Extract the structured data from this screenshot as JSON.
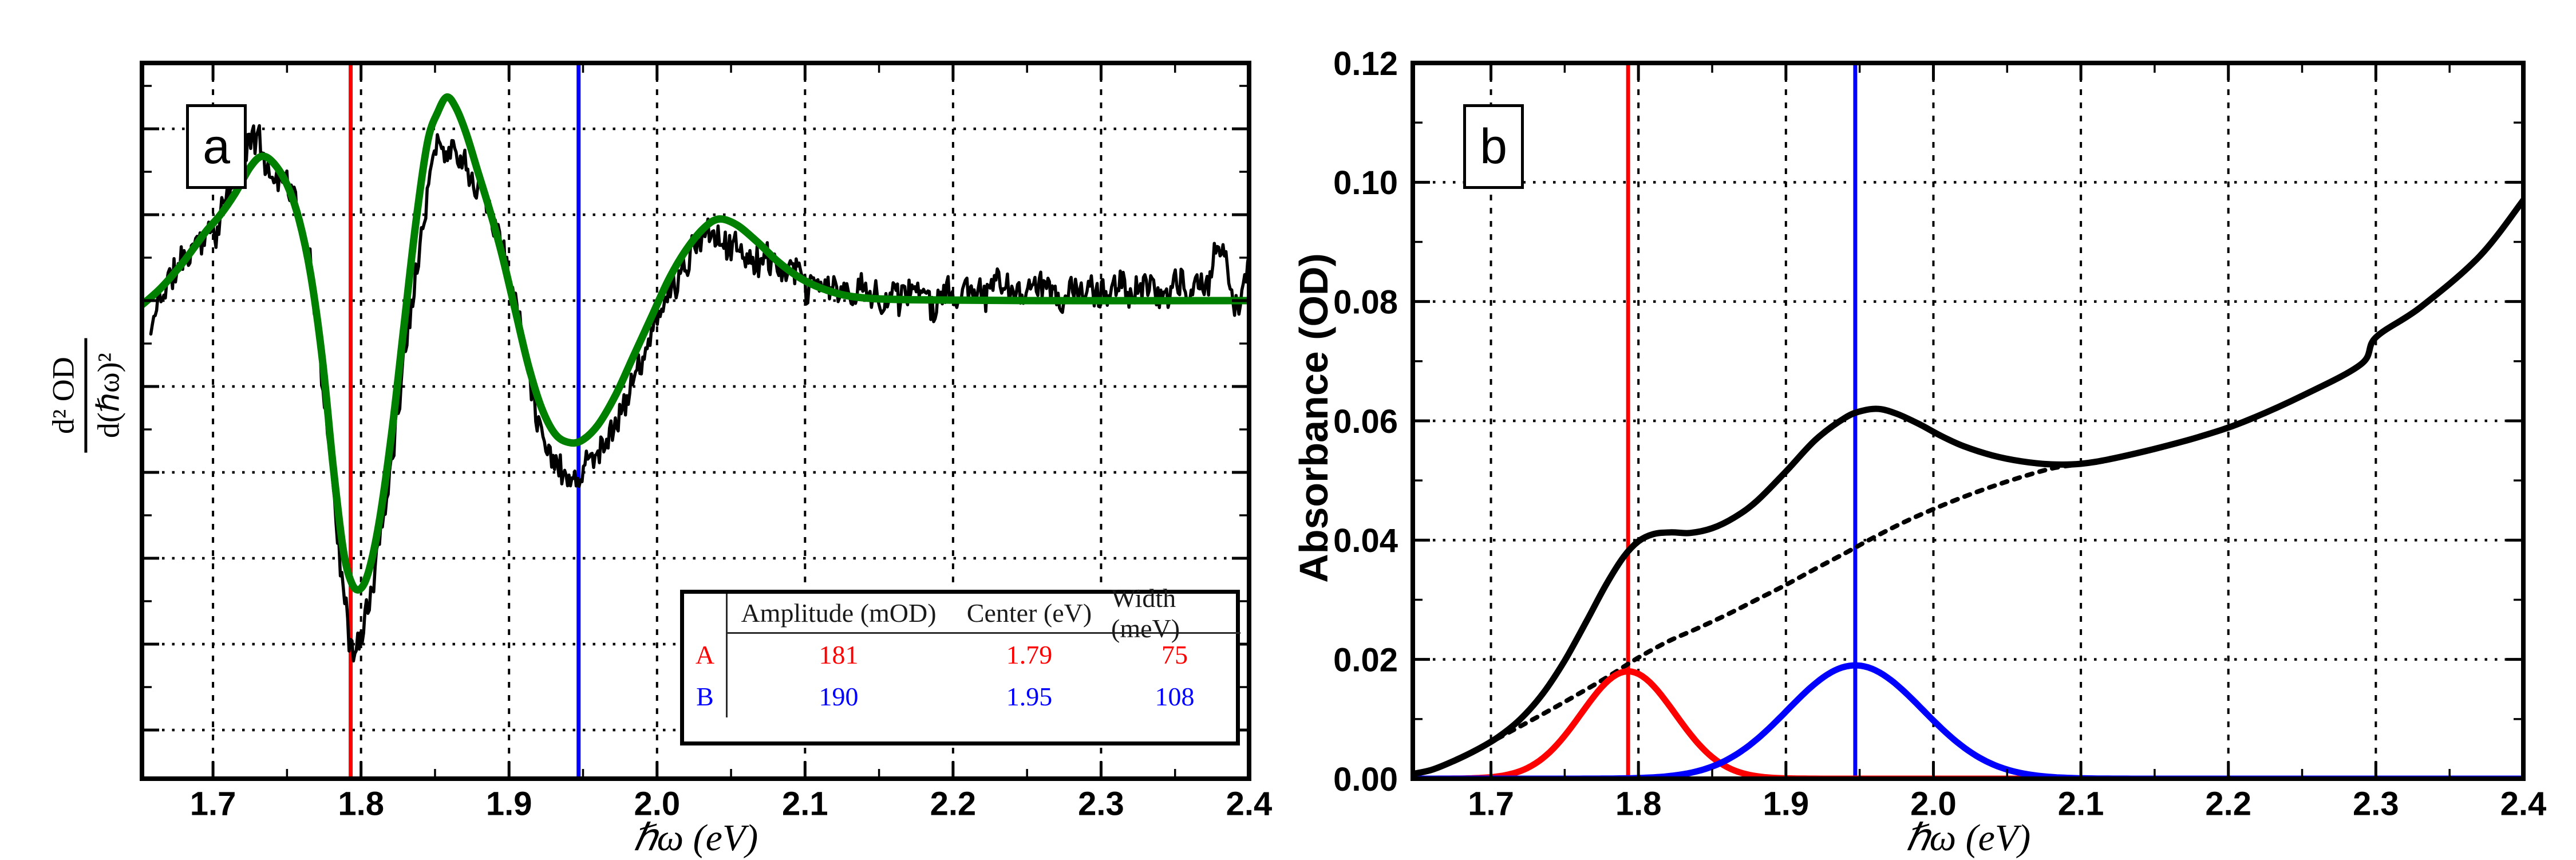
{
  "fit_table": {
    "headers": [
      "",
      "Amplitude (mOD)",
      "Center (eV)",
      "Width (meV)"
    ],
    "rows": [
      {
        "label": "A",
        "amplitude": "181",
        "center": "1.79",
        "width": "75",
        "color": "#ff0000"
      },
      {
        "label": "B",
        "amplitude": "190",
        "center": "1.95",
        "width": "108",
        "color": "#0000ff"
      }
    ]
  },
  "chart_data": [
    {
      "id": "a",
      "type": "line",
      "panel_label": "a",
      "xlabel": "ℏω  (eV)",
      "ylabel_num": "d² OD",
      "ylabel_den": "d(ℏω)²",
      "x_range": [
        1.652,
        2.4
      ],
      "x_ticks": [
        1.7,
        1.8,
        1.9,
        2.0,
        2.1,
        2.2,
        2.3,
        2.4
      ],
      "x_tick_decimals": 1,
      "x_minor_step": 0.05,
      "x_grid": [
        1.7,
        1.8,
        1.9,
        2.0,
        2.1,
        2.2,
        2.3
      ],
      "y_range": [
        -5.567,
        2.767
      ],
      "y_grid": [
        -5,
        -4,
        -3,
        -2,
        -1,
        0,
        1,
        2
      ],
      "y_minor_step": 0.5,
      "show_y_labels": false,
      "grid_style": "dotted",
      "vlines": [
        {
          "x": 1.793,
          "color": "#ff0000",
          "name": "peak-A-center-line"
        },
        {
          "x": 1.947,
          "color": "#0000ff",
          "name": "peak-B-center-line"
        }
      ],
      "series": [
        {
          "name": "second-derivative-data",
          "color": "#000000",
          "width": 5.5,
          "style": "noisy",
          "noise": {
            "seed": 11,
            "n": 760,
            "hf_amp": 0.16,
            "mf_amp": 0.15,
            "x_start": 1.658,
            "x_end": 2.4
          },
          "points": [
            [
              1.658,
              -0.4
            ],
            [
              1.664,
              0.05
            ],
            [
              1.672,
              0.3
            ],
            [
              1.682,
              0.5
            ],
            [
              1.692,
              0.75
            ],
            [
              1.702,
              0.9
            ],
            [
              1.712,
              1.3
            ],
            [
              1.72,
              1.6
            ],
            [
              1.727,
              1.95
            ],
            [
              1.734,
              1.7
            ],
            [
              1.742,
              1.4
            ],
            [
              1.75,
              1.5
            ],
            [
              1.757,
              1.1
            ],
            [
              1.765,
              0.4
            ],
            [
              1.772,
              -0.5
            ],
            [
              1.779,
              -1.7
            ],
            [
              1.786,
              -3.0
            ],
            [
              1.792,
              -3.9
            ],
            [
              1.797,
              -4.15
            ],
            [
              1.802,
              -3.8
            ],
            [
              1.808,
              -3.3
            ],
            [
              1.815,
              -2.5
            ],
            [
              1.822,
              -1.6
            ],
            [
              1.83,
              -0.5
            ],
            [
              1.838,
              0.6
            ],
            [
              1.846,
              1.5
            ],
            [
              1.853,
              1.9
            ],
            [
              1.859,
              1.75
            ],
            [
              1.865,
              1.9
            ],
            [
              1.872,
              1.6
            ],
            [
              1.88,
              1.5
            ],
            [
              1.888,
              1.1
            ],
            [
              1.896,
              0.6
            ],
            [
              1.905,
              0.0
            ],
            [
              1.913,
              -0.8
            ],
            [
              1.921,
              -1.4
            ],
            [
              1.93,
              -1.8
            ],
            [
              1.94,
              -2.0
            ],
            [
              1.95,
              -1.95
            ],
            [
              1.962,
              -1.7
            ],
            [
              1.974,
              -1.3
            ],
            [
              1.986,
              -0.85
            ],
            [
              1.998,
              -0.35
            ],
            [
              2.012,
              0.2
            ],
            [
              2.026,
              0.6
            ],
            [
              2.04,
              0.8
            ],
            [
              2.055,
              0.6
            ],
            [
              2.07,
              0.45
            ],
            [
              2.085,
              0.28
            ],
            [
              2.1,
              0.15
            ],
            [
              2.13,
              0.08
            ],
            [
              2.2,
              0.08
            ],
            [
              2.3,
              0.1
            ],
            [
              2.37,
              0.12
            ],
            [
              2.382,
              0.65
            ],
            [
              2.39,
              0.0
            ],
            [
              2.4,
              0.4
            ]
          ]
        },
        {
          "name": "second-derivative-fit",
          "color": "#008000",
          "width": 13,
          "style": "smooth",
          "points": [
            [
              1.652,
              -0.05
            ],
            [
              1.665,
              0.15
            ],
            [
              1.68,
              0.45
            ],
            [
              1.695,
              0.8
            ],
            [
              1.705,
              1.0
            ],
            [
              1.715,
              1.25
            ],
            [
              1.725,
              1.55
            ],
            [
              1.733,
              1.68
            ],
            [
              1.741,
              1.6
            ],
            [
              1.75,
              1.35
            ],
            [
              1.758,
              0.95
            ],
            [
              1.766,
              0.3
            ],
            [
              1.774,
              -0.7
            ],
            [
              1.781,
              -1.9
            ],
            [
              1.788,
              -2.9
            ],
            [
              1.794,
              -3.3
            ],
            [
              1.8,
              -3.35
            ],
            [
              1.806,
              -3.1
            ],
            [
              1.813,
              -2.5
            ],
            [
              1.821,
              -1.5
            ],
            [
              1.829,
              -0.3
            ],
            [
              1.837,
              0.9
            ],
            [
              1.845,
              1.85
            ],
            [
              1.852,
              2.2
            ],
            [
              1.858,
              2.37
            ],
            [
              1.864,
              2.25
            ],
            [
              1.871,
              1.95
            ],
            [
              1.879,
              1.5
            ],
            [
              1.887,
              1.05
            ],
            [
              1.895,
              0.55
            ],
            [
              1.904,
              -0.1
            ],
            [
              1.913,
              -0.75
            ],
            [
              1.922,
              -1.25
            ],
            [
              1.931,
              -1.55
            ],
            [
              1.94,
              -1.65
            ],
            [
              1.949,
              -1.63
            ],
            [
              1.96,
              -1.45
            ],
            [
              1.972,
              -1.1
            ],
            [
              1.984,
              -0.65
            ],
            [
              1.996,
              -0.2
            ],
            [
              2.008,
              0.25
            ],
            [
              2.02,
              0.6
            ],
            [
              2.032,
              0.85
            ],
            [
              2.042,
              0.95
            ],
            [
              2.054,
              0.88
            ],
            [
              2.068,
              0.68
            ],
            [
              2.082,
              0.45
            ],
            [
              2.098,
              0.25
            ],
            [
              2.115,
              0.12
            ],
            [
              2.135,
              0.04
            ],
            [
              2.17,
              0.01
            ],
            [
              2.25,
              0.0
            ],
            [
              2.4,
              0.0
            ]
          ]
        }
      ]
    },
    {
      "id": "b",
      "type": "line",
      "panel_label": "b",
      "xlabel": "ℏω  (eV)",
      "ylabel": "Absorbance (OD)",
      "x_range": [
        1.647,
        2.4
      ],
      "x_ticks": [
        1.7,
        1.8,
        1.9,
        2.0,
        2.1,
        2.2,
        2.3,
        2.4
      ],
      "x_tick_decimals": 1,
      "x_minor_step": 0.05,
      "x_grid": [
        1.7,
        1.8,
        1.9,
        2.0,
        2.1,
        2.2,
        2.3
      ],
      "y_range": [
        0,
        0.12
      ],
      "y_ticks": [
        0,
        0.02,
        0.04,
        0.06,
        0.08,
        0.1,
        0.12
      ],
      "y_tick_decimals": 2,
      "y_minor_step": 0.01,
      "y_grid": [
        0.02,
        0.04,
        0.06,
        0.08,
        0.1
      ],
      "show_y_labels": true,
      "grid_style": "dotted",
      "vlines": [
        {
          "x": 1.793,
          "color": "#ff0000",
          "name": "peak-A-center-line"
        },
        {
          "x": 1.947,
          "color": "#0000ff",
          "name": "peak-B-center-line"
        }
      ],
      "series": [
        {
          "name": "background",
          "color": "#000000",
          "width": 8,
          "style": "smooth",
          "dash": "10 13",
          "points": [
            [
              1.647,
              0.0008
            ],
            [
              1.66,
              0.0015
            ],
            [
              1.675,
              0.003
            ],
            [
              1.69,
              0.0048
            ],
            [
              1.705,
              0.0068
            ],
            [
              1.72,
              0.0088
            ],
            [
              1.74,
              0.0115
            ],
            [
              1.76,
              0.0143
            ],
            [
              1.78,
              0.0172
            ],
            [
              1.8,
              0.0203
            ],
            [
              1.82,
              0.023
            ],
            [
              1.84,
              0.0252
            ],
            [
              1.86,
              0.0275
            ],
            [
              1.88,
              0.03
            ],
            [
              1.9,
              0.0325
            ],
            [
              1.92,
              0.0352
            ],
            [
              1.94,
              0.0378
            ],
            [
              1.96,
              0.0405
            ],
            [
              1.98,
              0.043
            ],
            [
              2.0,
              0.0452
            ],
            [
              2.02,
              0.0472
            ],
            [
              2.04,
              0.049
            ],
            [
              2.06,
              0.0506
            ],
            [
              2.08,
              0.052
            ],
            [
              2.095,
              0.0526
            ]
          ]
        },
        {
          "name": "component-A",
          "color": "#ff0000",
          "width": 11,
          "style": "gaussian",
          "center": 1.793,
          "amplitude": 0.018,
          "sigma": 0.0318
        },
        {
          "name": "component-B",
          "color": "#0000ff",
          "width": 11,
          "style": "gaussian",
          "center": 1.947,
          "amplitude": 0.019,
          "sigma": 0.0459
        },
        {
          "name": "total-absorbance",
          "color": "#000000",
          "width": 11,
          "style": "smooth",
          "points": [
            [
              1.647,
              0.0008
            ],
            [
              1.66,
              0.0015
            ],
            [
              1.675,
              0.003
            ],
            [
              1.69,
              0.0048
            ],
            [
              1.705,
              0.007
            ],
            [
              1.72,
              0.01
            ],
            [
              1.735,
              0.0142
            ],
            [
              1.75,
              0.0198
            ],
            [
              1.765,
              0.0265
            ],
            [
              1.778,
              0.0325
            ],
            [
              1.79,
              0.0372
            ],
            [
              1.8,
              0.0398
            ],
            [
              1.81,
              0.041
            ],
            [
              1.822,
              0.0413
            ],
            [
              1.835,
              0.0412
            ],
            [
              1.85,
              0.042
            ],
            [
              1.865,
              0.0438
            ],
            [
              1.88,
              0.0465
            ],
            [
              1.9,
              0.0515
            ],
            [
              1.92,
              0.0568
            ],
            [
              1.94,
              0.0605
            ],
            [
              1.952,
              0.0617
            ],
            [
              1.963,
              0.062
            ],
            [
              1.975,
              0.0612
            ],
            [
              1.99,
              0.0595
            ],
            [
              2.005,
              0.0575
            ],
            [
              2.02,
              0.0558
            ],
            [
              2.04,
              0.0542
            ],
            [
              2.06,
              0.0532
            ],
            [
              2.08,
              0.0527
            ],
            [
              2.1,
              0.0528
            ],
            [
              2.12,
              0.0536
            ],
            [
              2.15,
              0.0553
            ],
            [
              2.18,
              0.0573
            ],
            [
              2.21,
              0.0598
            ],
            [
              2.25,
              0.0642
            ],
            [
              2.29,
              0.0695
            ],
            [
              2.3,
              0.074
            ],
            [
              2.33,
              0.079
            ],
            [
              2.37,
              0.0875
            ],
            [
              2.4,
              0.097
            ]
          ]
        }
      ]
    }
  ]
}
